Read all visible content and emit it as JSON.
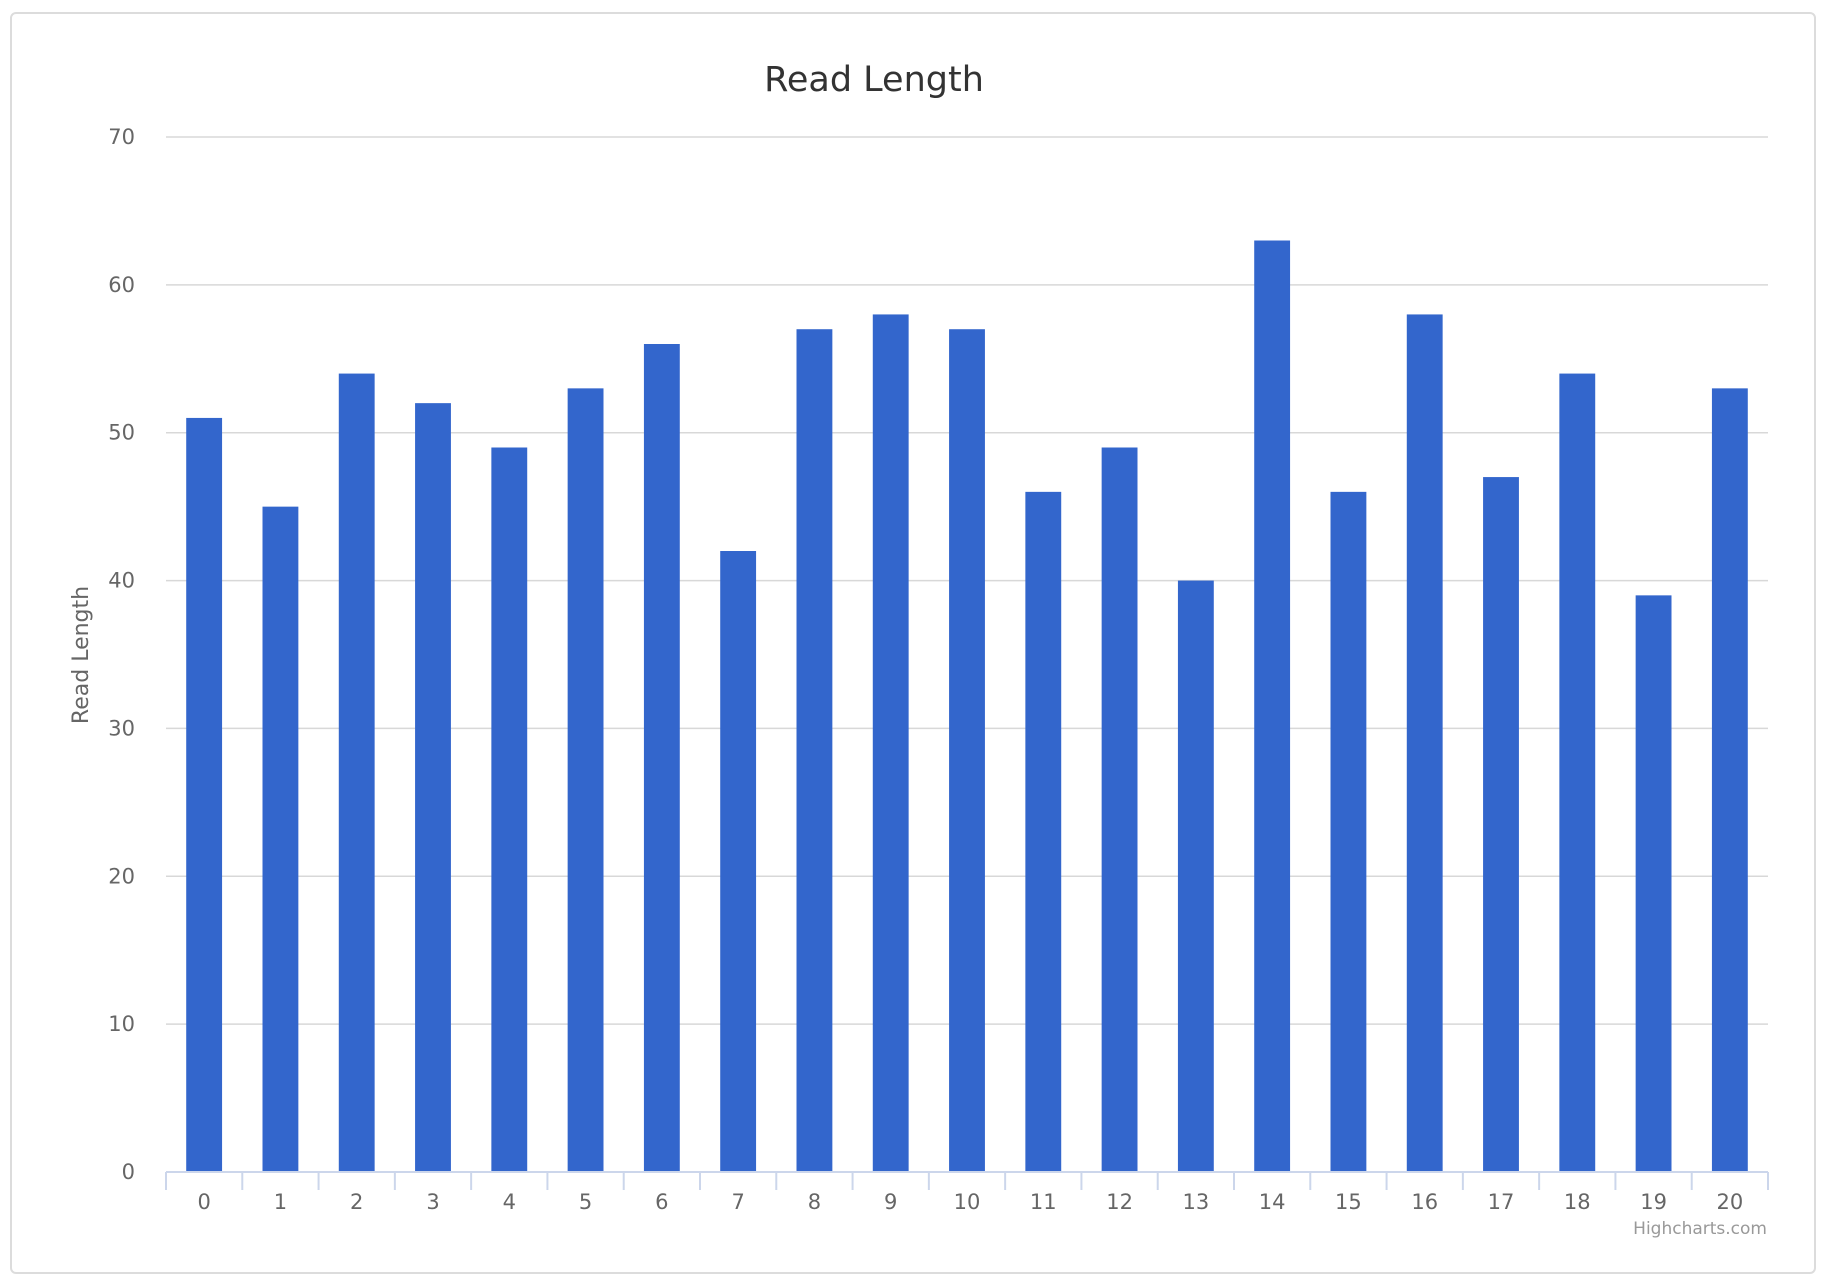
{
  "chart_data": {
    "type": "bar",
    "title": "Read Length",
    "xlabel": "",
    "ylabel": "Read Length",
    "categories": [
      "0",
      "1",
      "2",
      "3",
      "4",
      "5",
      "6",
      "7",
      "8",
      "9",
      "10",
      "11",
      "12",
      "13",
      "14",
      "15",
      "16",
      "17",
      "18",
      "19",
      "20"
    ],
    "values": [
      51,
      45,
      54,
      52,
      49,
      53,
      56,
      42,
      57,
      58,
      57,
      46,
      49,
      40,
      63,
      46,
      58,
      47,
      54,
      39,
      53
    ],
    "ylim": [
      0,
      70
    ],
    "yticks": [
      0,
      10,
      20,
      30,
      40,
      50,
      60,
      70
    ],
    "grid": true,
    "legend": "none",
    "bar_color": "#3366cc",
    "grid_color": "#d8d8d8",
    "axis_color": "#ccd6eb",
    "credit": "Highcharts.com"
  }
}
